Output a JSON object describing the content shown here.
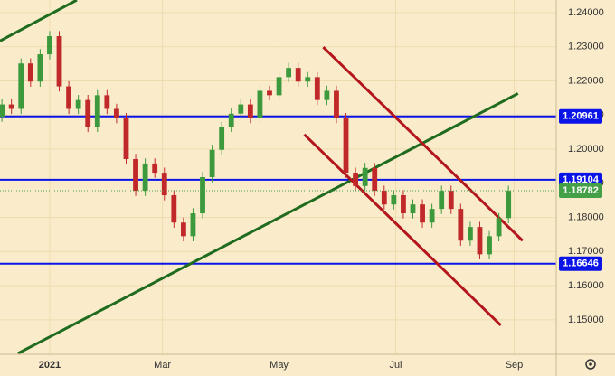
{
  "chart_data": {
    "type": "candlestick",
    "x": [
      -25,
      -20,
      -15,
      -10,
      -5,
      0,
      5,
      10,
      15,
      20,
      25,
      30,
      35,
      40,
      45,
      50,
      55,
      60,
      65,
      70,
      75,
      80,
      85,
      90,
      95,
      100,
      105,
      110,
      115,
      120,
      125,
      130,
      135,
      140,
      145,
      150,
      155,
      160,
      165,
      170,
      175,
      180,
      185,
      190,
      195,
      200,
      205,
      210,
      215,
      220,
      225,
      230,
      235,
      240
    ],
    "open": [
      1.2095,
      1.2131,
      1.2118,
      1.2251,
      1.2198,
      1.2278,
      1.2331,
      1.2184,
      1.2118,
      1.2144,
      1.2065,
      1.2158,
      1.2118,
      1.2091,
      1.1971,
      1.1878,
      1.1958,
      1.1931,
      1.1865,
      1.1785,
      1.1745,
      1.1812,
      1.1918,
      1.1998,
      1.2065,
      1.2104,
      1.2131,
      1.2091,
      1.2171,
      1.2158,
      1.2211,
      1.2238,
      1.2198,
      1.2211,
      1.2144,
      1.2171,
      1.2091,
      1.1931,
      1.1892,
      1.1945,
      1.1878,
      1.1838,
      1.1865,
      1.1812,
      1.1838,
      1.1785,
      1.1825,
      1.1878,
      1.1825,
      1.1732,
      1.1772,
      1.1692,
      1.1745,
      1.1798
    ],
    "high": [
      1.2146,
      1.2146,
      1.2266,
      1.2266,
      1.2293,
      1.2346,
      1.2346,
      1.2199,
      1.2159,
      1.2159,
      1.2173,
      1.2173,
      1.2133,
      1.2106,
      1.1986,
      1.1973,
      1.1973,
      1.1946,
      1.188,
      1.18,
      1.1827,
      1.1933,
      1.2013,
      1.208,
      1.2119,
      1.2146,
      1.2146,
      1.2186,
      1.2186,
      1.2226,
      1.2253,
      1.2253,
      1.2226,
      1.2226,
      1.2186,
      1.2186,
      1.2106,
      1.1946,
      1.196,
      1.196,
      1.1893,
      1.188,
      1.188,
      1.1853,
      1.1853,
      1.184,
      1.1893,
      1.1893,
      1.184,
      1.1787,
      1.1787,
      1.176,
      1.1813,
      1.1893
    ],
    "low": [
      1.208,
      1.2103,
      1.2103,
      1.2183,
      1.2183,
      1.2263,
      1.2169,
      1.2103,
      1.2103,
      1.205,
      1.205,
      1.2103,
      1.2076,
      1.1956,
      1.1863,
      1.1863,
      1.1916,
      1.185,
      1.177,
      1.173,
      1.173,
      1.1797,
      1.1903,
      1.1983,
      1.205,
      1.2089,
      1.2076,
      1.2076,
      1.2143,
      1.2143,
      1.2196,
      1.2183,
      1.2183,
      1.2129,
      1.2129,
      1.2076,
      1.1916,
      1.1877,
      1.1877,
      1.1863,
      1.1823,
      1.1823,
      1.1797,
      1.1797,
      1.177,
      1.177,
      1.181,
      1.181,
      1.1717,
      1.1717,
      1.1677,
      1.1677,
      1.173,
      1.1783
    ],
    "close": [
      1.2131,
      1.2118,
      1.2251,
      1.2198,
      1.2278,
      1.2331,
      1.2184,
      1.2118,
      1.2144,
      1.2065,
      1.2158,
      1.2118,
      1.2091,
      1.1971,
      1.1878,
      1.1958,
      1.1931,
      1.1865,
      1.1785,
      1.1745,
      1.1812,
      1.1918,
      1.1998,
      1.2065,
      1.2104,
      1.2131,
      1.2091,
      1.2171,
      1.2158,
      1.2211,
      1.2238,
      1.2198,
      1.2211,
      1.2144,
      1.2171,
      1.2091,
      1.1931,
      1.1892,
      1.1945,
      1.1878,
      1.1838,
      1.1865,
      1.1812,
      1.1838,
      1.1785,
      1.1825,
      1.1878,
      1.1825,
      1.1732,
      1.1772,
      1.1692,
      1.1745,
      1.1798,
      1.1878
    ],
    "up_color": "#3c9a3c",
    "down_color": "#c0282a",
    "xlim": [
      -26,
      265
    ],
    "xticks": [
      {
        "value": 0,
        "label": "2021"
      },
      {
        "value": 59,
        "label": "Mar"
      },
      {
        "value": 120,
        "label": "May"
      },
      {
        "value": 181,
        "label": "Jul"
      },
      {
        "value": 243,
        "label": "Sep"
      }
    ],
    "ylim": [
      1.1399,
      1.2437
    ],
    "yticks": [
      {
        "value": 1.24,
        "label": "1.24000"
      },
      {
        "value": 1.23,
        "label": "1.23000"
      },
      {
        "value": 1.22,
        "label": "1.22000"
      },
      {
        "value": 1.21,
        "label": "1.21000"
      },
      {
        "value": 1.2,
        "label": "1.20000"
      },
      {
        "value": 1.19,
        "label": "1.19000"
      },
      {
        "value": 1.18,
        "label": "1.18000"
      },
      {
        "value": 1.17,
        "label": "1.17000"
      },
      {
        "value": 1.16,
        "label": "1.16000"
      },
      {
        "value": 1.15,
        "label": "1.15000"
      }
    ],
    "grid": true,
    "price_lines": [
      {
        "value": 1.20961,
        "label": "1.20961",
        "color": "#0a14e6"
      },
      {
        "value": 1.19104,
        "label": "1.19104",
        "color": "#0a14e6"
      },
      {
        "value": 1.16646,
        "label": "1.16646",
        "color": "#0a14e6"
      }
    ],
    "last_price": {
      "value": 1.18782,
      "label": "1.18782",
      "color": "#43a047"
    },
    "trend_lines": [
      {
        "color": "#1f6b1f",
        "x": [
          -16.6,
          245
        ],
        "y": [
          1.14016,
          1.2163
        ]
      },
      {
        "color": "#1f6b1f",
        "x": [
          -26,
          14.2
        ],
        "y": [
          1.2317,
          1.2437
        ]
      },
      {
        "color": "#b3161c",
        "x": [
          143.1,
          247.4
        ],
        "y": [
          1.2299,
          1.1732
        ]
      },
      {
        "color": "#b3161c",
        "x": [
          133.2,
          236
        ],
        "y": [
          1.2043,
          1.1484
        ]
      }
    ]
  }
}
